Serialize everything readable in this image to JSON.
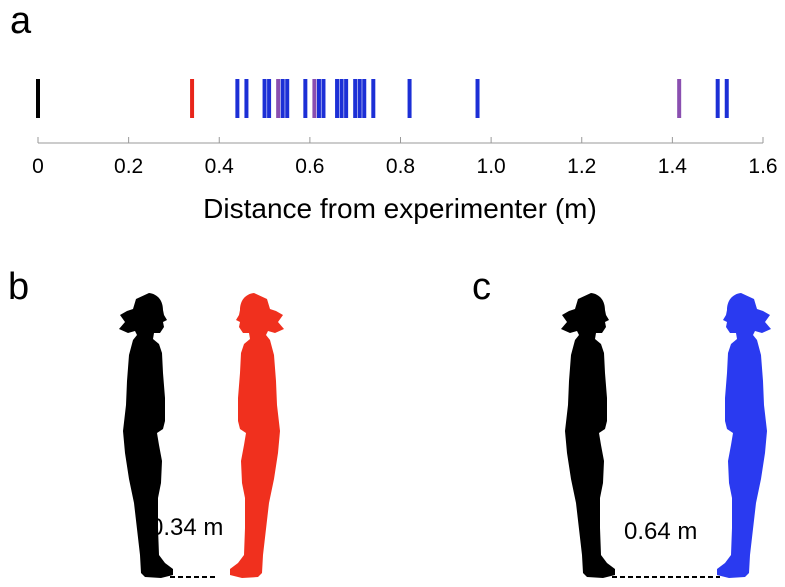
{
  "panels": {
    "a": "a",
    "b": "b",
    "c": "c"
  },
  "chart_data": {
    "type": "scatter",
    "marker": "vertical-line",
    "xlabel": "Distance from experimenter (m)",
    "xlim": [
      0,
      1.6
    ],
    "xticks": [
      0,
      0.2,
      0.4,
      0.6,
      0.8,
      1.0,
      1.2,
      1.4,
      1.6
    ],
    "xtick_labels": [
      "0",
      "0.2",
      "0.4",
      "0.6",
      "0.8",
      "1.0",
      "1.2",
      "1.4",
      "1.6"
    ],
    "grid": false,
    "series": [
      {
        "color": "#000000",
        "values": [
          0.0
        ]
      },
      {
        "color": "#e8251a",
        "values": [
          0.34
        ]
      },
      {
        "color": "#1c2fd6",
        "values": [
          0.44,
          0.46,
          0.5,
          0.51,
          0.54,
          0.55,
          0.59,
          0.62,
          0.63,
          0.66,
          0.67,
          0.68,
          0.7,
          0.71,
          0.72,
          0.74,
          0.82,
          0.97,
          1.5,
          1.52
        ]
      },
      {
        "color": "#8a4fb0",
        "values": [
          0.53,
          0.61,
          1.415
        ]
      }
    ]
  },
  "illustrations": [
    {
      "panel": "b",
      "left_figure_color": "#000000",
      "right_figure_color": "#f0301e",
      "distance_label": "0.34 m"
    },
    {
      "panel": "c",
      "left_figure_color": "#000000",
      "right_figure_color": "#2a3af0",
      "distance_label": "0.64 m"
    }
  ]
}
